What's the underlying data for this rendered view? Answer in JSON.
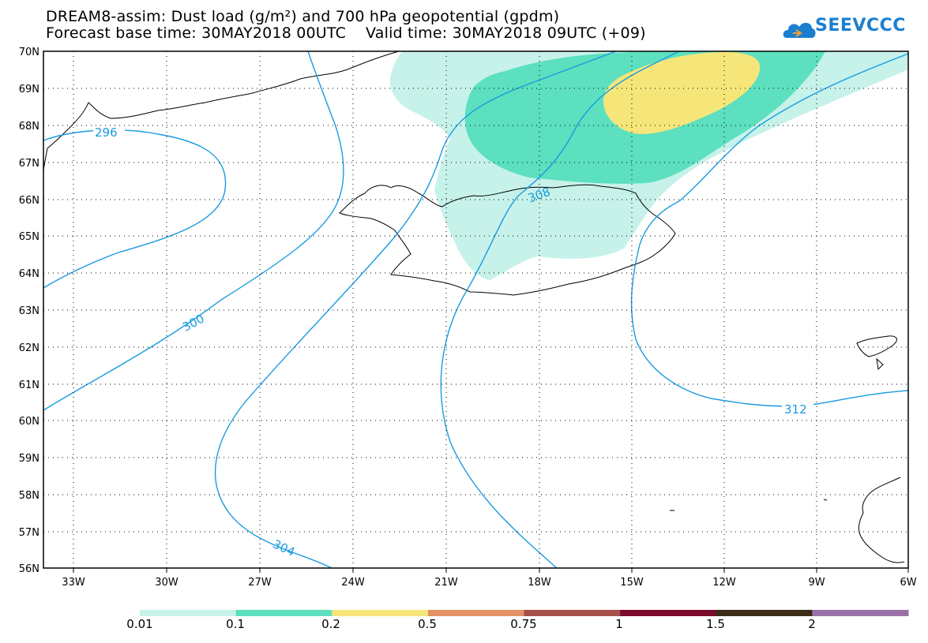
{
  "title": {
    "line1": "DREAM8-assim: Dust load (g/m²) and 700 hPa geopotential (gpdm)",
    "line2": "Forecast base time: 30MAY2018 00UTC    Valid time: 30MAY2018 09UTC (+09)"
  },
  "logo": {
    "text": "SEEVCCC",
    "icon": "cloud-icon"
  },
  "axes": {
    "lat_labels": [
      "70N",
      "69N",
      "68N",
      "67N",
      "66N",
      "65N",
      "64N",
      "63N",
      "62N",
      "61N",
      "60N",
      "59N",
      "58N",
      "57N",
      "56N"
    ],
    "lon_labels": [
      "33W",
      "30W",
      "27W",
      "24W",
      "21W",
      "18W",
      "15W",
      "12W",
      "9W",
      "6W"
    ],
    "lat_range": [
      56,
      70
    ],
    "lon_range": [
      -34.5,
      -6
    ]
  },
  "contours": {
    "color": "#1a9be0",
    "labels": [
      "296",
      "300",
      "304",
      "308",
      "312"
    ]
  },
  "colorbar": {
    "colors": [
      "#c6f2ea",
      "#5ce0bf",
      "#f6e67a",
      "#e39165",
      "#a6504b",
      "#7c0c2e",
      "#3c2b19",
      "#9a72a8"
    ],
    "labels": [
      "0.01",
      "0.1",
      "0.2",
      "0.5",
      "0.75",
      "1",
      "1.5",
      "2"
    ]
  }
}
